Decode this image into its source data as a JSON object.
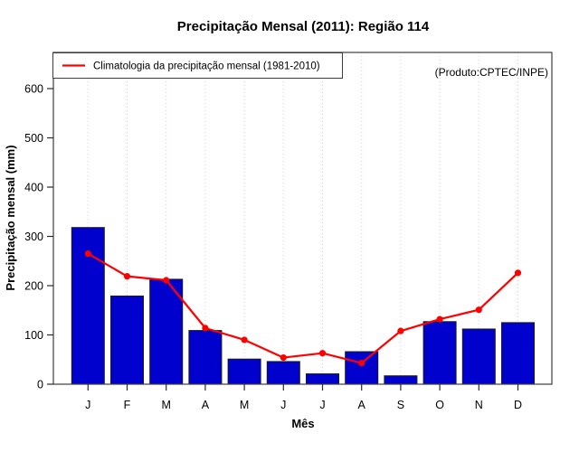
{
  "chart_data": {
    "type": "bar",
    "title": "Precipitação Mensal (2011): Região 114",
    "xlabel": "Mês",
    "ylabel": "Precipitação mensal (mm)",
    "annotation": "(Produto:CPTEC/INPE)",
    "categories": [
      "J",
      "F",
      "M",
      "A",
      "M",
      "J",
      "J",
      "A",
      "S",
      "O",
      "N",
      "D"
    ],
    "series": [
      {
        "name": "Precipitação mensal 2011",
        "type": "bar",
        "color": "#0101CD",
        "values": [
          318,
          179,
          213,
          109,
          51,
          46,
          21,
          66,
          17,
          127,
          112,
          125
        ]
      },
      {
        "name": "Climatologia da precipitação mensal (1981-2010)",
        "type": "line",
        "color": "#FF0000",
        "values": [
          265,
          219,
          211,
          114,
          90,
          54,
          63,
          43,
          108,
          132,
          151,
          226
        ]
      }
    ],
    "yticks": [
      0,
      100,
      200,
      300,
      400,
      500,
      600
    ],
    "ylim": [
      0,
      672
    ],
    "grid": "vertical-dotted",
    "legend_position": "top-left"
  },
  "colors": {
    "bar_fill": "#0101CD",
    "bar_border": "#1a1a1a",
    "line": "#FF0000",
    "gridline": "#d4d4d4",
    "plot_border": "#3d3d3d",
    "tick": "#2a2a2a",
    "watermark_text": "#919191",
    "background": "#ffffff"
  }
}
